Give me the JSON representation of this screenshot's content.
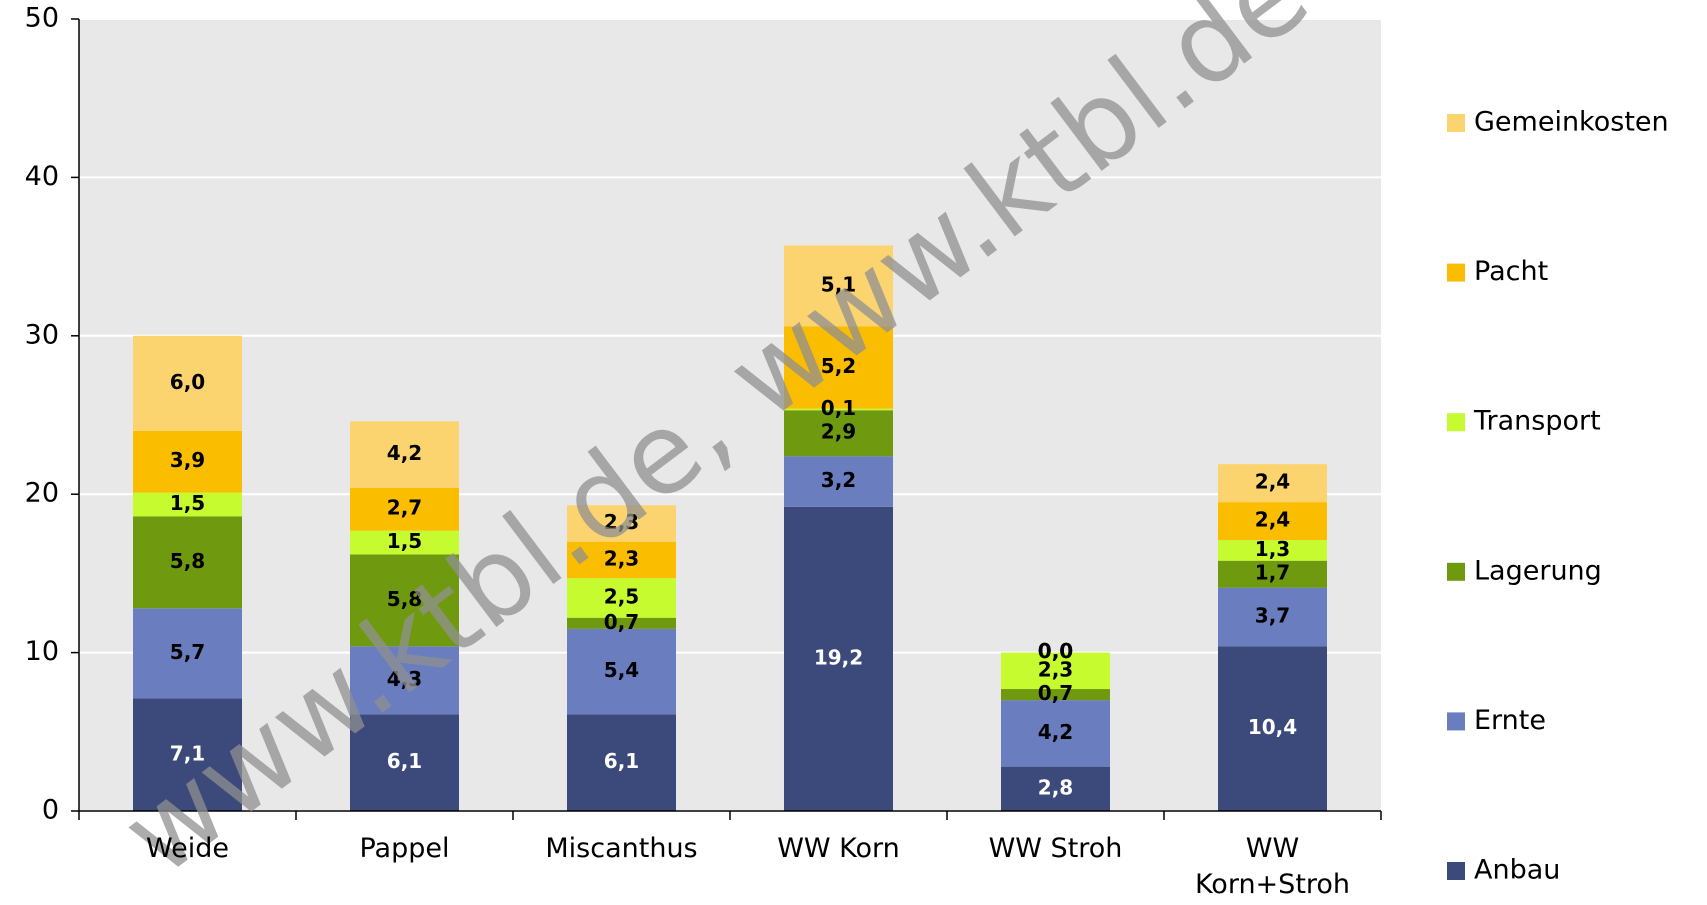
{
  "chart_data": {
    "type": "stacked_bar",
    "categories": [
      "Weide",
      "Pappel",
      "Miscanthus",
      "WW Korn",
      "WW Stroh",
      "WW Korn+Stroh"
    ],
    "series": [
      {
        "name": "Anbau",
        "color": "#3b4a7a",
        "label_color": "#ffffff",
        "values": [
          7.1,
          6.1,
          6.1,
          19.2,
          2.8,
          10.4
        ],
        "value_labels": [
          "7,1",
          "6,1",
          "6,1",
          "19,2",
          "2,8",
          "10,4"
        ]
      },
      {
        "name": "Ernte",
        "color": "#6a7dbf",
        "label_color": "#000000",
        "values": [
          5.7,
          4.3,
          5.4,
          3.2,
          4.2,
          3.7
        ],
        "value_labels": [
          "5,7",
          "4,3",
          "5,4",
          "3,2",
          "4,2",
          "3,7"
        ]
      },
      {
        "name": "Lagerung",
        "color": "#6f9a10",
        "label_color": "#000000",
        "values": [
          5.8,
          5.8,
          0.7,
          2.9,
          0.7,
          1.7
        ],
        "value_labels": [
          "5,8",
          "5,8",
          "0,7",
          "2,9",
          "0,7",
          "1,7"
        ]
      },
      {
        "name": "Transport",
        "color": "#c6fb2f",
        "label_color": "#000000",
        "values": [
          1.5,
          1.5,
          2.5,
          0.1,
          2.3,
          1.3
        ],
        "value_labels": [
          "1,5",
          "1,5",
          "2,5",
          "0,1",
          "2,3",
          "1,3"
        ]
      },
      {
        "name": "Pacht",
        "color": "#fbbd00",
        "label_color": "#000000",
        "values": [
          3.9,
          2.7,
          2.3,
          5.2,
          0.0,
          2.4
        ],
        "value_labels": [
          "3,9",
          "2,7",
          "2,3",
          "5,2",
          "0,0",
          "2,4"
        ]
      },
      {
        "name": "Gemeinkosten",
        "color": "#fcd46f",
        "label_color": "#000000",
        "values": [
          6.0,
          4.2,
          2.3,
          5.1,
          0.0,
          2.4
        ],
        "value_labels": [
          "6,0",
          "4,2",
          "2,3",
          "5,1",
          "0,0",
          "2,4"
        ]
      }
    ],
    "ylim": [
      0,
      50
    ],
    "yticks": [
      0,
      10,
      20,
      30,
      40,
      50
    ],
    "grid": true,
    "legend": "right",
    "watermark": "www.ktbl.de, www.ktbl.de"
  }
}
